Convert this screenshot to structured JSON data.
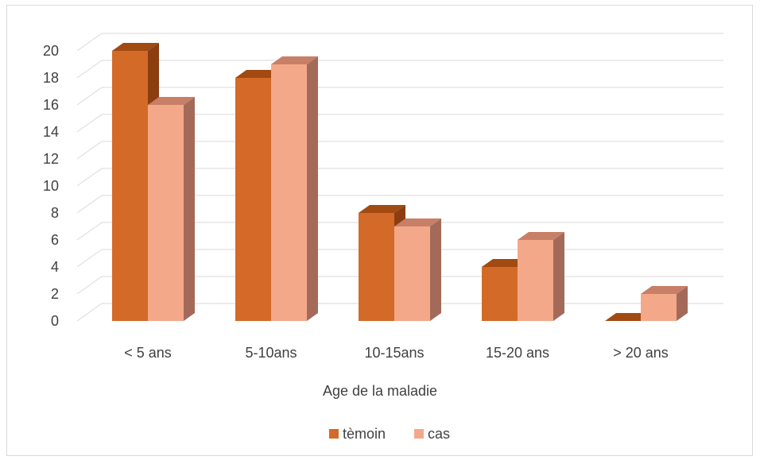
{
  "chart_data": {
    "type": "bar",
    "style": "3d-clustered-column",
    "categories": [
      "< 5 ans",
      "5-10ans",
      "10-15ans",
      "15-20 ans",
      "> 20 ans"
    ],
    "series": [
      {
        "name": "tèmoin",
        "values": [
          20,
          18,
          8,
          4,
          0
        ],
        "color": "#D46A27",
        "top_color": "#A14A12",
        "side_color": "#8B3E10"
      },
      {
        "name": "cas",
        "values": [
          16,
          19,
          7,
          6,
          2
        ],
        "color": "#F4A88A",
        "top_color": "#C77F67",
        "side_color": "#A36A5A"
      }
    ],
    "xlabel": "Age de la maladie",
    "ylabel": "",
    "ylim": [
      0,
      20
    ],
    "yticks": [
      0,
      2,
      4,
      6,
      8,
      10,
      12,
      14,
      16,
      18,
      20
    ],
    "grid": true,
    "legend_position": "bottom",
    "colors": {
      "grid": "#d9d9d9",
      "text": "#404040",
      "border": "#d9d9d9"
    }
  }
}
